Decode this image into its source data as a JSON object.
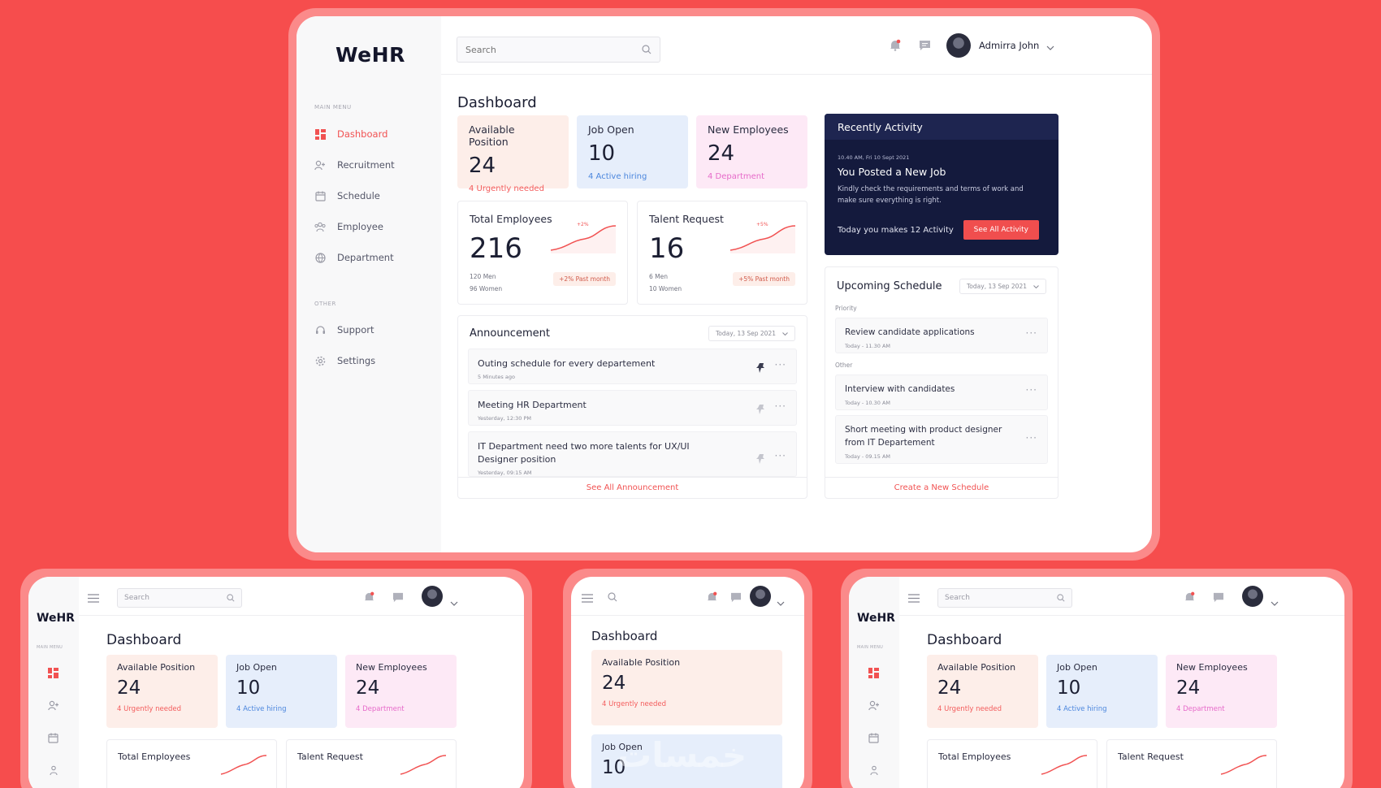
{
  "app": {
    "logo": "WeHR"
  },
  "sidebar": {
    "main_menu_label": "MAIN MENU",
    "other_label": "OTHER",
    "items": [
      {
        "label": "Dashboard",
        "icon": "dashboard-icon",
        "active": true
      },
      {
        "label": "Recruitment",
        "icon": "add-user-icon"
      },
      {
        "label": "Schedule",
        "icon": "calendar-icon"
      },
      {
        "label": "Employee",
        "icon": "employee-icon"
      },
      {
        "label": "Department",
        "icon": "department-icon"
      }
    ],
    "other_items": [
      {
        "label": "Support",
        "icon": "headset-icon"
      },
      {
        "label": "Settings",
        "icon": "gear-icon"
      }
    ]
  },
  "topbar": {
    "search_placeholder": "Search",
    "user_name": "Admirra John"
  },
  "page": {
    "title": "Dashboard"
  },
  "stats": [
    {
      "label": "Available Position",
      "value": "24",
      "sub": "4 Urgently needed"
    },
    {
      "label": "Job Open",
      "value": "10",
      "sub": "4 Active hiring"
    },
    {
      "label": "New Employees",
      "value": "24",
      "sub": "4 Department"
    }
  ],
  "total_employees": {
    "label": "Total Employees",
    "value": "216",
    "men": "120 Men",
    "women": "96 Women",
    "trend": "+2% Past month",
    "spark_label": "+2%"
  },
  "talent_request": {
    "label": "Talent Request",
    "value": "16",
    "men": "6 Men",
    "women": "10 Women",
    "trend": "+5% Past month",
    "spark_label": "+5%"
  },
  "announcement": {
    "title": "Announcement",
    "date": "Today, 13 Sep 2021",
    "items": [
      {
        "title": "Outing schedule for every departement",
        "time": "5 Minutes ago"
      },
      {
        "title": "Meeting HR Department",
        "time": "Yesterday, 12:30 PM"
      },
      {
        "title": "IT Department need two more talents for UX/UI Designer position",
        "time": "Yesterday, 09:15 AM"
      }
    ],
    "footer": "See All Announcement"
  },
  "activity": {
    "title": "Recently Activity",
    "timestamp": "10.40 AM, Fri 10 Sept 2021",
    "event": "You Posted a New Job",
    "description": "Kindly check the requirements and terms of work and make sure everything is right.",
    "today": "Today you makes 12 Activity",
    "button": "See All Activity"
  },
  "schedule": {
    "title": "Upcoming Schedule",
    "date": "Today, 13 Sep 2021",
    "priority_label": "Priority",
    "other_label": "Other",
    "priority_items": [
      {
        "title": "Review candidate applications",
        "time": "Today - 11.30 AM"
      }
    ],
    "other_items": [
      {
        "title": "Interview with candidates",
        "time": "Today - 10.30 AM"
      },
      {
        "title": "Short meeting with product designer from IT Departement",
        "time": "Today - 09.15 AM"
      }
    ],
    "footer": "Create a New Schedule"
  },
  "colors": {
    "background": "#f64d4d",
    "accent": "#f15252",
    "navy": "#141a3d"
  },
  "watermark": "خمسات"
}
